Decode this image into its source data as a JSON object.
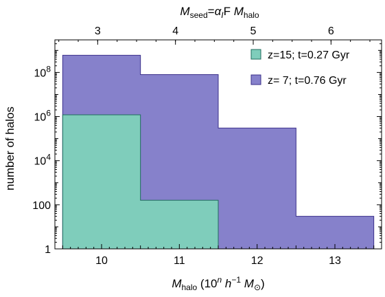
{
  "chart_data": {
    "type": "area",
    "subtype": "step-histogram",
    "xlabel": {
      "main": "M",
      "sub": "halo",
      "units_pre": " (10",
      "units_sup1": "n",
      "units_h": " h",
      "units_sup2": "−1",
      "units_M": " M",
      "units_sub2": "⊙",
      "units_post": ")"
    },
    "top_xlabel": {
      "M": "M",
      "sub": "seed",
      "eq": "=",
      "alpha": "α",
      "alpha_sub": "I",
      "F": "F ",
      "M2": "M",
      "sub2": "halo"
    },
    "ylabel": "number of halos",
    "xlim": [
      9.4,
      13.6
    ],
    "ylim": [
      1,
      3000000000
    ],
    "yscale": "log",
    "grid": false,
    "legend_position": "top-right",
    "x_ticks": [
      {
        "value": 10,
        "label": "10"
      },
      {
        "value": 11,
        "label": "11"
      },
      {
        "value": 12,
        "label": "12"
      },
      {
        "value": 13,
        "label": "13"
      }
    ],
    "top_ticks": [
      {
        "value": 9.95,
        "label": "3"
      },
      {
        "value": 10.95,
        "label": "4"
      },
      {
        "value": 11.95,
        "label": "5"
      },
      {
        "value": 12.95,
        "label": "6"
      }
    ],
    "y_ticks": [
      {
        "value": 1,
        "label": "1",
        "base": "",
        "exp": ""
      },
      {
        "value": 100,
        "label": "100",
        "base": "",
        "exp": ""
      },
      {
        "value": 10000,
        "label": "",
        "base": "10",
        "exp": "4"
      },
      {
        "value": 1000000,
        "label": "",
        "base": "10",
        "exp": "6"
      },
      {
        "value": 100000000,
        "label": "",
        "base": "10",
        "exp": "8"
      }
    ],
    "series": [
      {
        "name": "z= 7; t=0.76 Gyr",
        "color": "#8681cb",
        "stroke": "#3a2f8a",
        "bins": [
          {
            "x0": 9.5,
            "x1": 10.5,
            "value": 600000000
          },
          {
            "x0": 10.5,
            "x1": 11.5,
            "value": 80000000
          },
          {
            "x0": 11.5,
            "x1": 12.5,
            "value": 300000
          },
          {
            "x0": 12.5,
            "x1": 13.5,
            "value": 30
          }
        ]
      },
      {
        "name": "z=15; t=0.27 Gyr",
        "color": "#7fcdbb",
        "stroke": "#1f6b5c",
        "bins": [
          {
            "x0": 9.5,
            "x1": 10.5,
            "value": 1200000
          },
          {
            "x0": 10.5,
            "x1": 11.5,
            "value": 160
          },
          {
            "x0": 11.5,
            "x1": 12.5,
            "value": 1
          }
        ]
      }
    ]
  }
}
